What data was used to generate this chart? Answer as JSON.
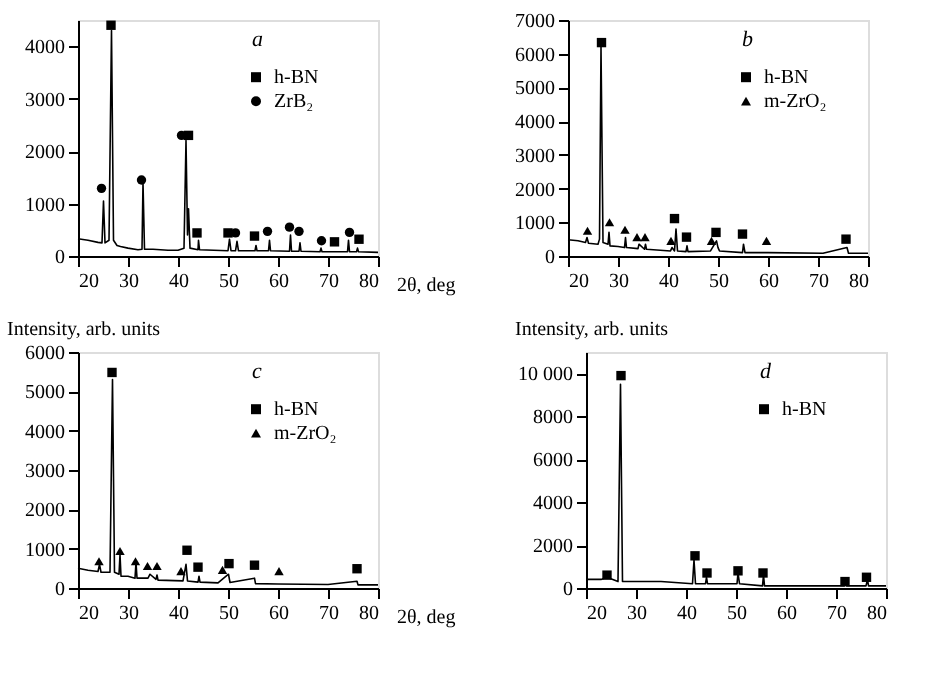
{
  "chart_data": [
    {
      "type": "line",
      "annotations": [
        "a"
      ],
      "xlabel": "2θ, deg",
      "xlim": [
        20,
        80
      ],
      "xticks": [
        20,
        30,
        40,
        50,
        60,
        70,
        80
      ],
      "ylim": [
        0,
        4500
      ],
      "yticks": [
        0,
        1000,
        2000,
        3000,
        4000
      ],
      "grid": false,
      "legend": "top right",
      "series": [
        {
          "type": "line",
          "color": "#000000",
          "x": [
            20,
            22,
            24,
            24.8,
            25.1,
            25.4,
            26.2,
            26.7,
            27.1,
            27.8,
            28.5,
            30,
            32,
            32.8,
            33.0,
            33.3,
            35,
            38,
            40,
            41.2,
            41.6,
            41.9,
            42.1,
            42.4,
            44,
            44.1,
            44.3,
            50,
            50.3,
            50.6,
            51.5,
            51.8,
            52.1,
            55.4,
            55.6,
            55.8,
            58.1,
            58.3,
            58.5,
            62.3,
            62.5,
            62.7,
            64.2,
            64.4,
            64.6,
            68.4,
            68.6,
            68.8,
            71,
            73.9,
            74.1,
            74.3,
            75.7,
            75.9,
            76.1,
            80
          ],
          "values": [
            330,
            300,
            260,
            250,
            1050,
            250,
            300,
            4300,
            300,
            200,
            180,
            150,
            120,
            130,
            1400,
            130,
            130,
            110,
            110,
            150,
            2200,
            400,
            900,
            150,
            120,
            300,
            120,
            100,
            320,
            100,
            100,
            280,
            100,
            100,
            200,
            100,
            100,
            300,
            100,
            90,
            400,
            90,
            90,
            250,
            90,
            80,
            150,
            80,
            80,
            80,
            300,
            80,
            80,
            150,
            80,
            70
          ]
        },
        {
          "type": "scatter",
          "name": "h-BN",
          "color": "#000000",
          "marker": "square",
          "x": [
            26.6,
            42.1,
            43.8,
            50.0,
            55.3,
            71.3,
            76.2
          ],
          "values": [
            4400,
            2300,
            440,
            440,
            380,
            270,
            320
          ]
        },
        {
          "type": "scatter",
          "name": "ZrB₂",
          "color": "#000000",
          "marker": "circle",
          "x": [
            24.7,
            32.7,
            40.7,
            51.5,
            57.9,
            62.3,
            64.2,
            68.7,
            74.3
          ],
          "values": [
            1290,
            1450,
            2300,
            440,
            470,
            550,
            470,
            290,
            450
          ]
        }
      ]
    },
    {
      "type": "line",
      "annotations": [
        "b"
      ],
      "xlim": [
        20,
        80
      ],
      "xticks": [
        20,
        30,
        40,
        50,
        60,
        70,
        80
      ],
      "ylim": [
        0,
        7000
      ],
      "yticks": [
        0,
        1000,
        2000,
        3000,
        4000,
        5000,
        6000,
        7000
      ],
      "grid": false,
      "legend": "top right",
      "series": [
        {
          "type": "line",
          "color": "#000000",
          "x": [
            20,
            22,
            23.5,
            23.8,
            24.1,
            26,
            26.3,
            26.6,
            27,
            28,
            28.2,
            28.4,
            30,
            31.3,
            31.5,
            31.7,
            34,
            34.2,
            35.3,
            35.5,
            35.7,
            40.5,
            40.8,
            41.3,
            41.6,
            41.9,
            43.6,
            43.8,
            44,
            48.5,
            49.7,
            50,
            50.3,
            54.9,
            55.1,
            55.4,
            60,
            71,
            75.8,
            76.1,
            80
          ],
          "values": [
            480,
            450,
            400,
            550,
            380,
            350,
            500,
            6200,
            400,
            350,
            700,
            300,
            280,
            250,
            550,
            250,
            220,
            350,
            200,
            350,
            200,
            150,
            250,
            150,
            800,
            150,
            130,
            300,
            130,
            150,
            450,
            250,
            150,
            100,
            350,
            100,
            100,
            80,
            250,
            80,
            80
          ]
        },
        {
          "type": "scatter",
          "name": "h-BN",
          "color": "#000000",
          "marker": "square",
          "x": [
            26.7,
            41.3,
            43.7,
            49.6,
            54.9,
            75.6
          ],
          "values": [
            6330,
            1110,
            560,
            700,
            650,
            500
          ]
        },
        {
          "type": "scatter",
          "name": "m-ZrO₂",
          "color": "#000000",
          "marker": "triangle",
          "x": [
            23.9,
            28.3,
            31.4,
            33.8,
            35.4,
            40.6,
            48.7,
            59.7
          ],
          "values": [
            750,
            1000,
            780,
            560,
            560,
            450,
            450,
            450
          ]
        }
      ]
    },
    {
      "type": "line",
      "annotations": [
        "c"
      ],
      "xlabel": "2θ, deg",
      "ylabel": "Intensity, arb. units",
      "xlim": [
        20,
        80
      ],
      "xticks": [
        20,
        30,
        40,
        50,
        60,
        70,
        80
      ],
      "ylim": [
        0,
        6000
      ],
      "yticks": [
        0,
        1000,
        2000,
        3000,
        4000,
        5000,
        6000
      ],
      "grid": false,
      "legend": "top right",
      "series": [
        {
          "type": "line",
          "color": "#000000",
          "x": [
            20,
            22,
            24,
            24.3,
            24.6,
            26.4,
            26.9,
            27.3,
            28.2,
            28.4,
            28.6,
            30,
            31.4,
            31.6,
            31.8,
            34,
            34.4,
            35.6,
            35.8,
            36,
            41,
            41.6,
            41.9,
            44,
            44.2,
            44.4,
            48,
            50.1,
            50.4,
            55.3,
            55.5,
            60,
            70,
            75.8,
            76,
            80
          ],
          "values": [
            500,
            450,
            420,
            600,
            400,
            400,
            5300,
            400,
            350,
            850,
            300,
            300,
            250,
            650,
            250,
            250,
            350,
            220,
            330,
            200,
            180,
            600,
            180,
            150,
            300,
            150,
            130,
            350,
            140,
            250,
            110,
            100,
            90,
            170,
            80,
            80
          ]
        },
        {
          "type": "scatter",
          "name": "h-BN",
          "color": "#000000",
          "marker": "square",
          "x": [
            26.8,
            41.8,
            44.0,
            50.2,
            55.3,
            75.8
          ],
          "values": [
            5480,
            960,
            530,
            620,
            580,
            490
          ]
        },
        {
          "type": "scatter",
          "name": "m-ZrO₂",
          "color": "#000000",
          "marker": "triangle",
          "x": [
            24.2,
            28.4,
            31.5,
            33.9,
            35.8,
            40.6,
            48.9,
            60.2
          ],
          "values": [
            680,
            940,
            680,
            560,
            560,
            430,
            460,
            430
          ]
        }
      ]
    },
    {
      "type": "line",
      "annotations": [
        "d"
      ],
      "ylabel": "Intensity, arb. units",
      "xlim": [
        20,
        80
      ],
      "xticks": [
        20,
        30,
        40,
        50,
        60,
        70,
        80
      ],
      "ylim": [
        0,
        11000
      ],
      "yticks": [
        0,
        2000,
        4000,
        6000,
        8000,
        {
          "value": 10000,
          "label": "10 000"
        }
      ],
      "grid": false,
      "legend": "top right",
      "series": [
        {
          "type": "line",
          "color": "#000000",
          "x": [
            20,
            23,
            24.2,
            26.4,
            26.9,
            27.3,
            30,
            35,
            41.3,
            41.6,
            41.9,
            43.9,
            44.1,
            44.3,
            50.2,
            50.4,
            50.7,
            55.3,
            55.5,
            55.7,
            60,
            71.7,
            71.9,
            72.1,
            76,
            76.3,
            76.5,
            80
          ],
          "values": [
            400,
            400,
            500,
            300,
            9500,
            300,
            300,
            300,
            200,
            1300,
            200,
            200,
            500,
            200,
            200,
            700,
            200,
            100,
            600,
            100,
            100,
            100,
            200,
            100,
            100,
            400,
            100,
            100
          ]
        },
        {
          "type": "scatter",
          "name": "h-BN",
          "color": "#000000",
          "marker": "square",
          "x": [
            24.2,
            27.0,
            41.8,
            44.2,
            50.4,
            55.4,
            71.8,
            76.1
          ],
          "values": [
            600,
            9900,
            1500,
            700,
            800,
            700,
            300,
            500
          ]
        }
      ]
    }
  ]
}
